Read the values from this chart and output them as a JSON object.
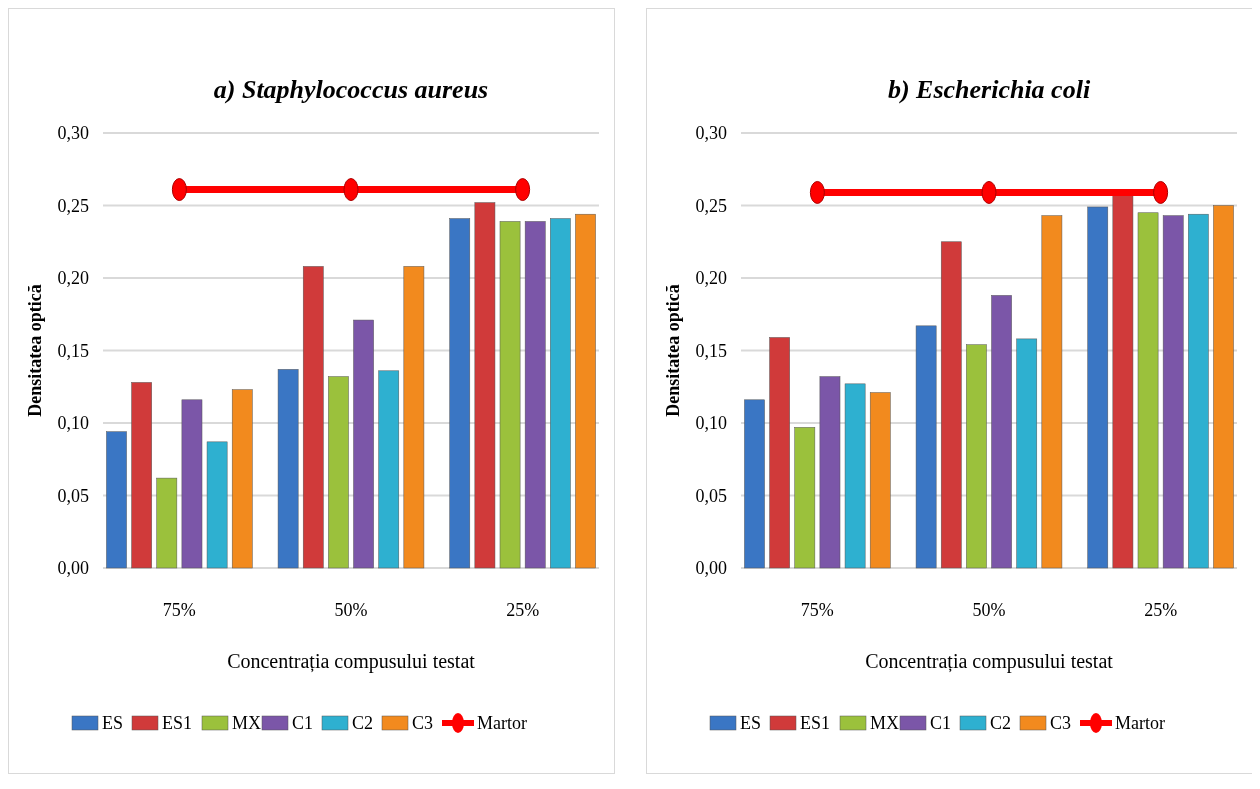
{
  "chart_data": [
    {
      "type": "bar",
      "title": "a) Staphylococcus aureus",
      "xlabel": "Concentrația compusului testat",
      "ylabel": "Densitatea optică",
      "categories": [
        "75%",
        "50%",
        "25%"
      ],
      "series": [
        {
          "name": "ES",
          "color": "#3a76c4",
          "values": [
            0.094,
            0.137,
            0.241
          ]
        },
        {
          "name": "ES1",
          "color": "#d03a3a",
          "values": [
            0.128,
            0.208,
            0.252
          ]
        },
        {
          "name": "MX",
          "color": "#9bc13c",
          "values": [
            0.062,
            0.132,
            0.239
          ]
        },
        {
          "name": "C1",
          "color": "#7b56a8",
          "values": [
            0.116,
            0.171,
            0.239
          ]
        },
        {
          "name": "C2",
          "color": "#2eb0d0",
          "values": [
            0.087,
            0.136,
            0.241
          ]
        },
        {
          "name": "C3",
          "color": "#f28a1e",
          "values": [
            0.123,
            0.208,
            0.244
          ]
        },
        {
          "name": "Martor",
          "color": "#ff0000",
          "type": "line",
          "marker": "circle",
          "values": [
            0.261,
            0.261,
            0.261
          ]
        }
      ],
      "ylim": [
        0,
        0.3
      ],
      "yticks": [
        {
          "value": 0,
          "label": "0,00"
        },
        {
          "value": 0.05,
          "label": "0,05"
        },
        {
          "value": 0.1,
          "label": "0,10"
        },
        {
          "value": 0.15,
          "label": "0,15"
        },
        {
          "value": 0.2,
          "label": "0,20"
        },
        {
          "value": 0.25,
          "label": "0,25"
        },
        {
          "value": 0.3,
          "label": "0,30"
        }
      ],
      "grid": "y",
      "legend": "bottom"
    },
    {
      "type": "bar",
      "title": "b) Escherichia coli",
      "xlabel": "Concentrația compusului testat",
      "ylabel": "Densitatea optică",
      "categories": [
        "75%",
        "50%",
        "25%"
      ],
      "series": [
        {
          "name": "ES",
          "color": "#3a76c4",
          "values": [
            0.116,
            0.167,
            0.249
          ]
        },
        {
          "name": "ES1",
          "color": "#d03a3a",
          "values": [
            0.159,
            0.225,
            0.257
          ]
        },
        {
          "name": "MX",
          "color": "#9bc13c",
          "values": [
            0.097,
            0.154,
            0.245
          ]
        },
        {
          "name": "C1",
          "color": "#7b56a8",
          "values": [
            0.132,
            0.188,
            0.243
          ]
        },
        {
          "name": "C2",
          "color": "#2eb0d0",
          "values": [
            0.127,
            0.158,
            0.244
          ]
        },
        {
          "name": "C3",
          "color": "#f28a1e",
          "values": [
            0.121,
            0.243,
            0.25
          ]
        },
        {
          "name": "Martor",
          "color": "#ff0000",
          "type": "line",
          "marker": "circle",
          "values": [
            0.259,
            0.259,
            0.259
          ]
        }
      ],
      "ylim": [
        0,
        0.3
      ],
      "yticks": [
        {
          "value": 0,
          "label": "0,00"
        },
        {
          "value": 0.05,
          "label": "0,05"
        },
        {
          "value": 0.1,
          "label": "0,10"
        },
        {
          "value": 0.15,
          "label": "0,15"
        },
        {
          "value": 0.2,
          "label": "0,20"
        },
        {
          "value": 0.25,
          "label": "0,25"
        },
        {
          "value": 0.3,
          "label": "0,30"
        }
      ],
      "grid": "y",
      "legend": "bottom"
    }
  ]
}
